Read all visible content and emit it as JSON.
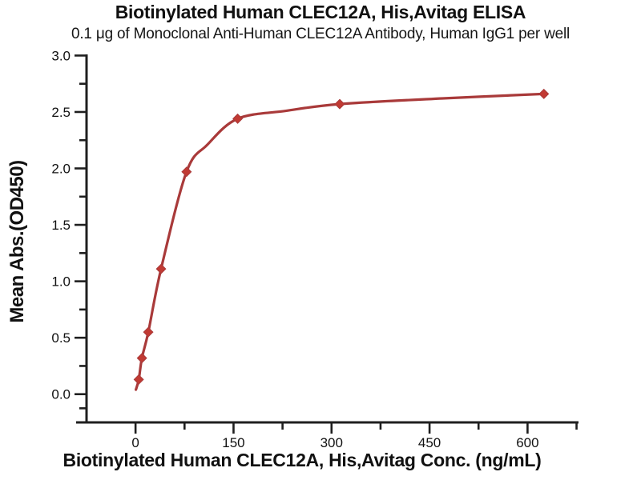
{
  "chart_data": {
    "type": "scatter",
    "title": "Biotinylated Human CLEC12A, His,Avitag ELISA",
    "subtitle": "0.1 μg of Monoclonal Anti-Human CLEC12A Antibody, Human IgG1 per well",
    "xlabel": "Biotinylated Human CLEC12A, His,Avitag Conc. (ng/mL)",
    "ylabel": "Mean Abs.(OD450)",
    "x": [
      4.9,
      9.8,
      19.5,
      39.1,
      78.1,
      156.3,
      312.5,
      625
    ],
    "y": [
      0.13,
      0.32,
      0.55,
      1.11,
      1.97,
      2.44,
      2.57,
      2.66
    ],
    "fit_curve": [
      [
        0.5,
        0.04
      ],
      [
        4.9,
        0.13
      ],
      [
        9.8,
        0.32
      ],
      [
        19.5,
        0.55
      ],
      [
        39.1,
        1.11
      ],
      [
        78.1,
        1.97
      ],
      [
        110,
        2.21
      ],
      [
        156.3,
        2.44
      ],
      [
        230,
        2.51
      ],
      [
        312.5,
        2.57
      ],
      [
        470,
        2.62
      ],
      [
        625,
        2.66
      ]
    ],
    "xlim": [
      -75,
      678
    ],
    "ylim": [
      -0.25,
      3.01
    ],
    "x_ticks": {
      "major": [
        0,
        150,
        300,
        450,
        600
      ],
      "labels": [
        "0",
        "150",
        "300",
        "450",
        "600"
      ],
      "minor": [
        75,
        225,
        375,
        525,
        675
      ]
    },
    "y_ticks": {
      "major": [
        0,
        0.5,
        1,
        1.5,
        2,
        2.5,
        3
      ],
      "labels": [
        "0.0",
        "0.5",
        "1.0",
        "1.5",
        "2.0",
        "2.5",
        "3.0"
      ],
      "minor": [
        -0.125,
        0.25,
        0.75,
        1.25,
        1.75,
        2.25,
        2.75
      ]
    },
    "grid": false,
    "legend": null,
    "marker_shape": "diamond",
    "colors": {
      "line": "#a93a3a",
      "marker": "#c13a33",
      "axis": "#1f1f1f",
      "text": "#111111",
      "background": "#ffffff"
    }
  }
}
